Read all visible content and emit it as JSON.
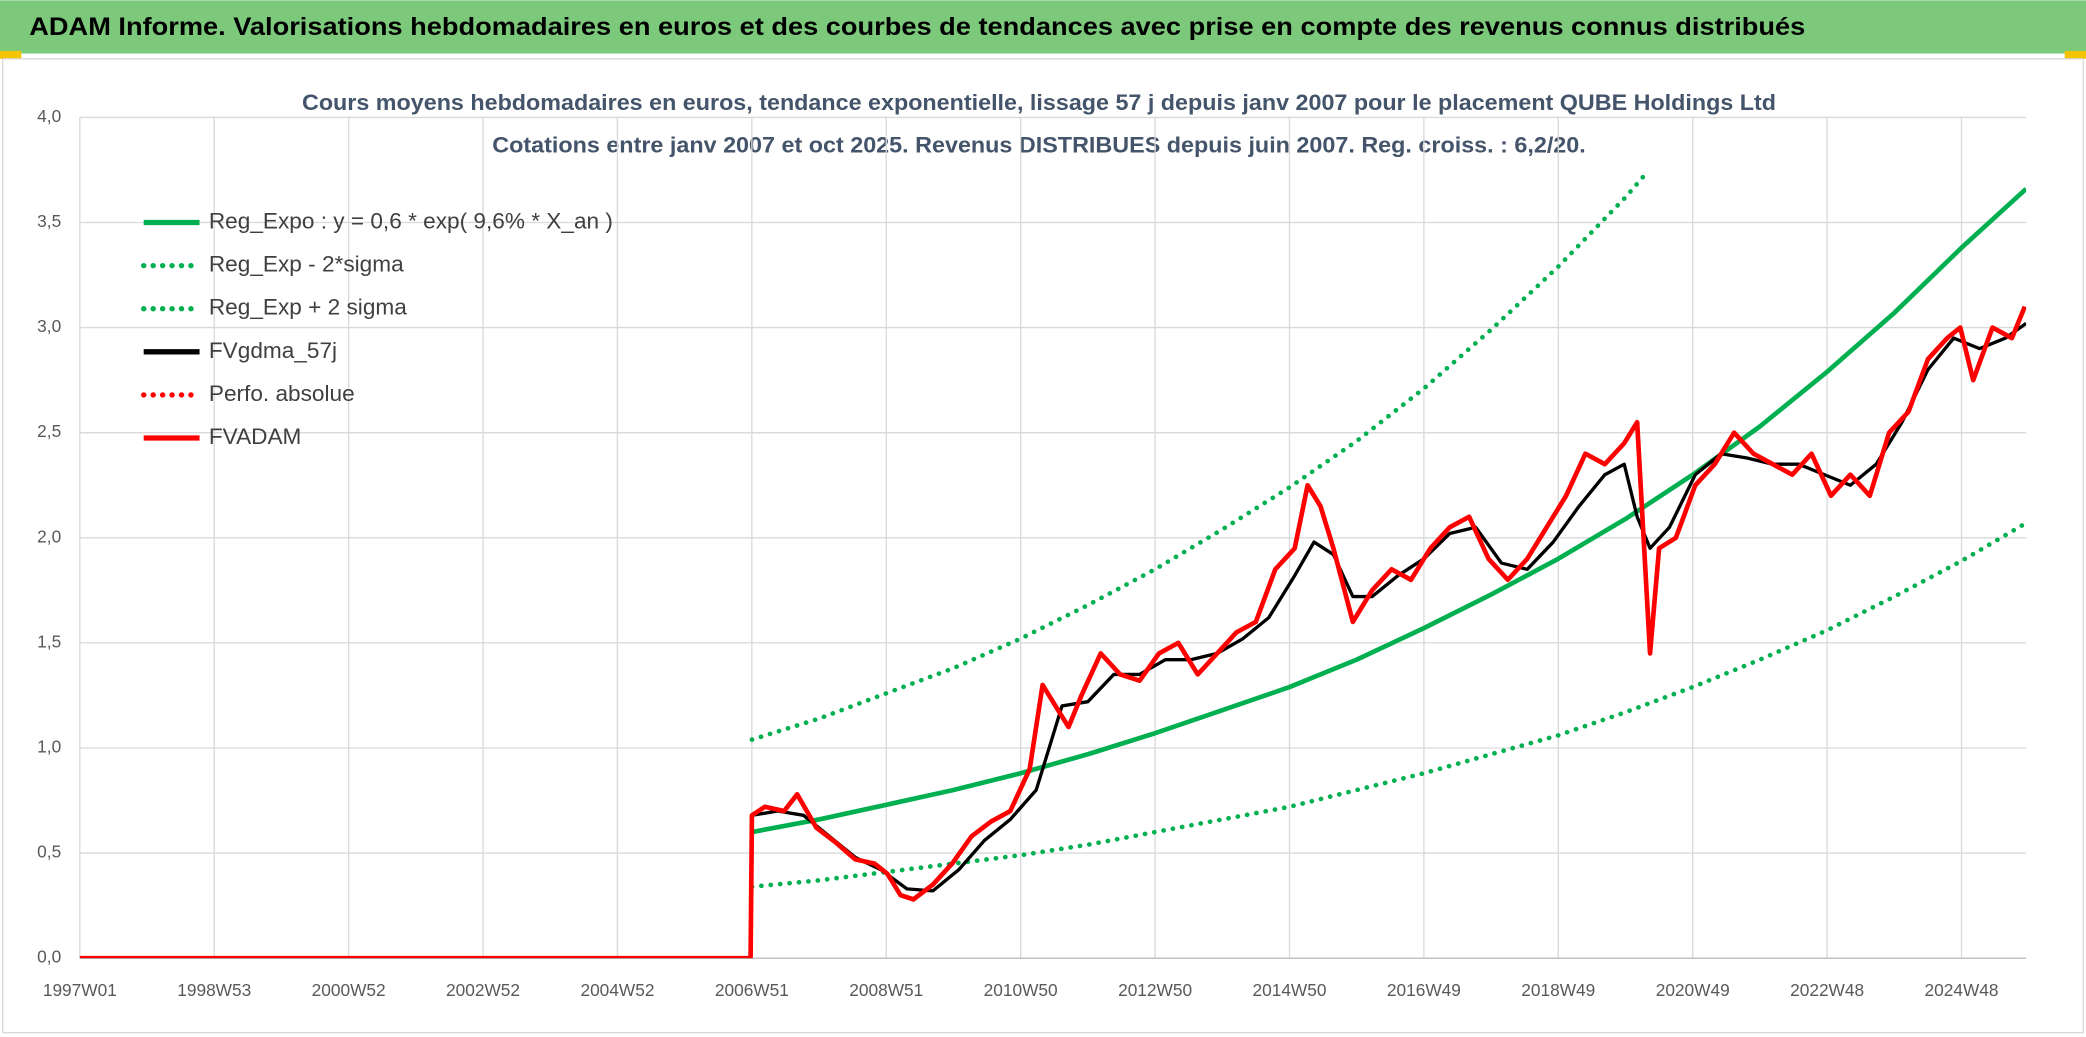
{
  "chart_data": {
    "type": "line",
    "title": "ADAM Informe. Valorisations hebdomadaires en euros et des courbes de tendances avec prise en compte des revenus connus distribués",
    "subtitle": [
      "Cours moyens hebdomadaires en euros, tendance exponentielle, lissage 57 j depuis janv 2007 pour le placement QUBE Holdings Ltd",
      "Cotations entre janv 2007 et oct 2025. Revenus DISTRIBUES depuis juin 2007. Reg. croiss. : 6,2/20."
    ],
    "xlim": [
      0,
      1506
    ],
    "xticks": [
      {
        "value": 0,
        "label": "1997W01"
      },
      {
        "value": 104,
        "label": "1998W53"
      },
      {
        "value": 208,
        "label": "2000W52"
      },
      {
        "value": 312,
        "label": "2002W52"
      },
      {
        "value": 416,
        "label": "2004W52"
      },
      {
        "value": 520,
        "label": "2006W51"
      },
      {
        "value": 624,
        "label": "2008W51"
      },
      {
        "value": 728,
        "label": "2010W50"
      },
      {
        "value": 832,
        "label": "2012W50"
      },
      {
        "value": 936,
        "label": "2014W50"
      },
      {
        "value": 1040,
        "label": "2016W49"
      },
      {
        "value": 1144,
        "label": "2018W49"
      },
      {
        "value": 1248,
        "label": "2020W49"
      },
      {
        "value": 1352,
        "label": "2022W48"
      },
      {
        "value": 1456,
        "label": "2024W48"
      }
    ],
    "ylim": [
      0,
      4
    ],
    "yticks": [
      {
        "value": 0,
        "label": "0,0"
      },
      {
        "value": 0.5,
        "label": "0,5"
      },
      {
        "value": 1,
        "label": "1,0"
      },
      {
        "value": 1.5,
        "label": "1,5"
      },
      {
        "value": 2,
        "label": "2,0"
      },
      {
        "value": 2.5,
        "label": "2,5"
      },
      {
        "value": 3,
        "label": "3,0"
      },
      {
        "value": 3.5,
        "label": "3,5"
      },
      {
        "value": 4,
        "label": "4,0"
      }
    ],
    "grid": true,
    "legend": "upper left",
    "series": [
      {
        "name": "Reg_Expo : y = 0,6 * exp( 9,6% *  X_an )",
        "color": "#00b050",
        "style": "solid",
        "x": [
          520,
          572,
          624,
          676,
          728,
          780,
          832,
          884,
          936,
          988,
          1040,
          1092,
          1144,
          1196,
          1248,
          1300,
          1352,
          1404,
          1456,
          1506
        ],
        "values": [
          0.6,
          0.66,
          0.73,
          0.8,
          0.88,
          0.97,
          1.07,
          1.18,
          1.29,
          1.42,
          1.57,
          1.73,
          1.9,
          2.09,
          2.3,
          2.53,
          2.79,
          3.07,
          3.38,
          3.66
        ]
      },
      {
        "name": "Reg_Exp - 2*sigma",
        "color": "#00b050",
        "style": "dotted",
        "x": [
          520,
          572,
          624,
          676,
          728,
          780,
          832,
          884,
          936,
          988,
          1040,
          1092,
          1144,
          1196,
          1248,
          1300,
          1352,
          1404,
          1456,
          1506
        ],
        "values": [
          0.34,
          0.37,
          0.41,
          0.45,
          0.49,
          0.54,
          0.6,
          0.66,
          0.72,
          0.8,
          0.88,
          0.97,
          1.06,
          1.17,
          1.29,
          1.42,
          1.56,
          1.72,
          1.89,
          2.07
        ]
      },
      {
        "name": "Reg_Exp + 2 sigma",
        "color": "#00b050",
        "style": "dotted",
        "x": [
          520,
          572,
          624,
          676,
          728,
          780,
          832,
          884,
          936,
          988,
          1040,
          1092,
          1144,
          1196,
          1210
        ],
        "values": [
          1.04,
          1.14,
          1.26,
          1.38,
          1.52,
          1.68,
          1.85,
          2.04,
          2.24,
          2.46,
          2.71,
          2.99,
          3.29,
          3.62,
          3.72
        ]
      },
      {
        "name": "FVgdma_57j",
        "color": "#000000",
        "style": "solid",
        "x": [
          0,
          519,
          520,
          540,
          560,
          580,
          600,
          620,
          640,
          660,
          680,
          700,
          720,
          740,
          760,
          780,
          800,
          820,
          840,
          860,
          880,
          900,
          920,
          940,
          955,
          970,
          985,
          1000,
          1020,
          1040,
          1060,
          1080,
          1100,
          1120,
          1140,
          1160,
          1180,
          1195,
          1205,
          1215,
          1230,
          1250,
          1270,
          1290,
          1310,
          1330,
          1350,
          1370,
          1390,
          1410,
          1430,
          1450,
          1470,
          1490,
          1506
        ],
        "values": [
          0,
          0,
          0.68,
          0.7,
          0.68,
          0.58,
          0.48,
          0.42,
          0.33,
          0.32,
          0.42,
          0.56,
          0.66,
          0.8,
          1.2,
          1.22,
          1.35,
          1.35,
          1.42,
          1.42,
          1.45,
          1.52,
          1.62,
          1.82,
          1.98,
          1.92,
          1.72,
          1.72,
          1.82,
          1.9,
          2.02,
          2.05,
          1.88,
          1.85,
          1.98,
          2.15,
          2.3,
          2.35,
          2.1,
          1.95,
          2.05,
          2.3,
          2.4,
          2.38,
          2.35,
          2.35,
          2.3,
          2.25,
          2.35,
          2.55,
          2.8,
          2.95,
          2.9,
          2.95,
          3.02
        ]
      },
      {
        "name": "Perfo. absolue",
        "color": "#ff0000",
        "style": "dotted",
        "x": [],
        "values": []
      },
      {
        "name": "FVADAM",
        "color": "#ff0000",
        "style": "solid",
        "x": [
          0,
          519,
          520,
          530,
          545,
          555,
          570,
          585,
          600,
          615,
          625,
          635,
          645,
          660,
          675,
          690,
          705,
          720,
          735,
          745,
          755,
          765,
          775,
          790,
          805,
          820,
          835,
          850,
          865,
          880,
          895,
          910,
          925,
          940,
          950,
          960,
          970,
          985,
          1000,
          1015,
          1030,
          1045,
          1060,
          1075,
          1090,
          1105,
          1120,
          1135,
          1150,
          1165,
          1180,
          1195,
          1205,
          1215,
          1222,
          1235,
          1250,
          1265,
          1280,
          1295,
          1310,
          1325,
          1340,
          1355,
          1370,
          1385,
          1400,
          1415,
          1430,
          1445,
          1455,
          1465,
          1480,
          1495,
          1505
        ],
        "values": [
          0,
          0,
          0.68,
          0.72,
          0.7,
          0.78,
          0.62,
          0.55,
          0.47,
          0.45,
          0.4,
          0.3,
          0.28,
          0.35,
          0.45,
          0.58,
          0.65,
          0.7,
          0.9,
          1.3,
          1.2,
          1.1,
          1.25,
          1.45,
          1.35,
          1.32,
          1.45,
          1.5,
          1.35,
          1.45,
          1.55,
          1.6,
          1.85,
          1.95,
          2.25,
          2.15,
          1.95,
          1.6,
          1.75,
          1.85,
          1.8,
          1.95,
          2.05,
          2.1,
          1.9,
          1.8,
          1.9,
          2.05,
          2.2,
          2.4,
          2.35,
          2.45,
          2.55,
          1.45,
          1.95,
          2.0,
          2.25,
          2.35,
          2.5,
          2.4,
          2.35,
          2.3,
          2.4,
          2.2,
          2.3,
          2.2,
          2.5,
          2.6,
          2.85,
          2.95,
          3.0,
          2.75,
          3.0,
          2.95,
          3.1
        ]
      }
    ]
  }
}
